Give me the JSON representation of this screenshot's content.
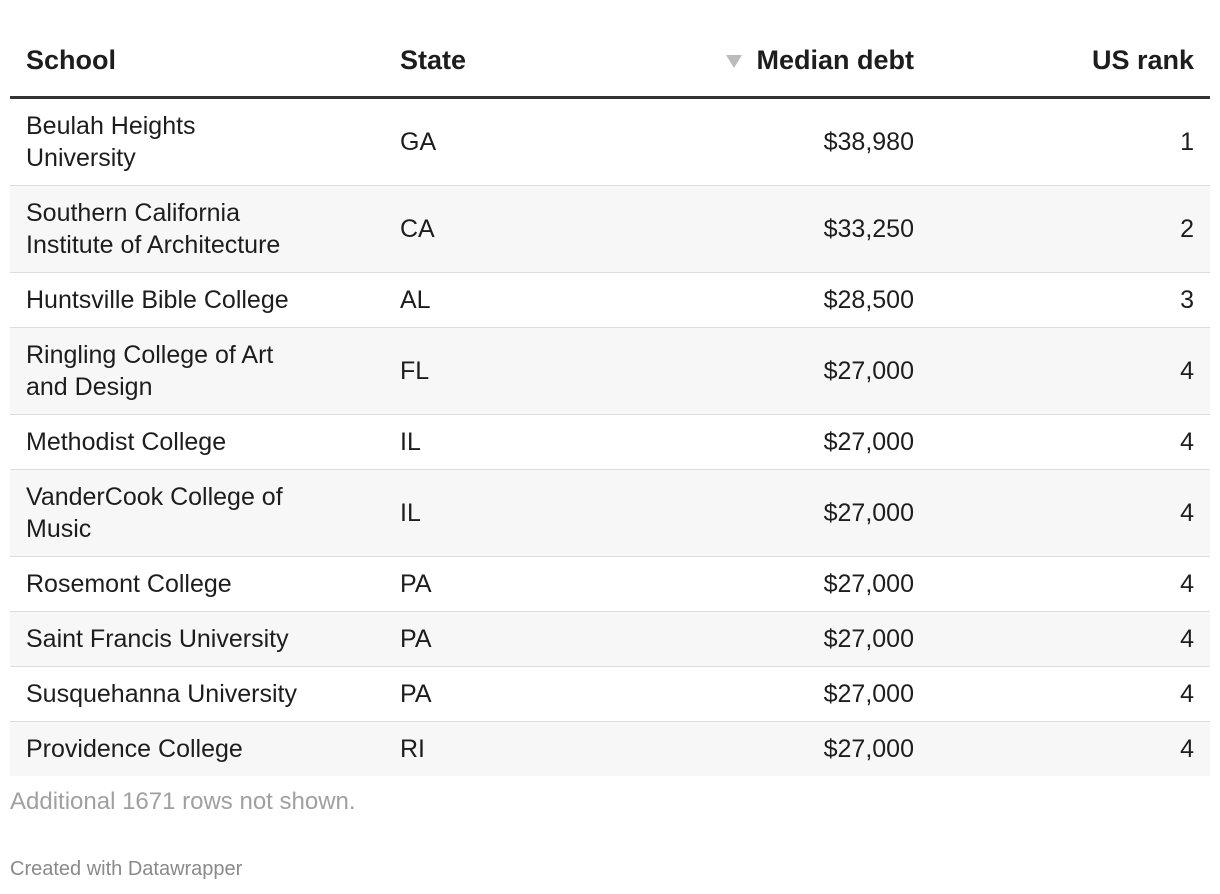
{
  "table": {
    "columns": [
      "School",
      "State",
      "Median debt",
      "US rank"
    ],
    "rows": [
      [
        "Beulah Heights University",
        "GA",
        "$38,980",
        1
      ],
      [
        "Southern California Institute of Architecture",
        "CA",
        "$33,250",
        2
      ],
      [
        "Huntsville Bible College",
        "AL",
        "$28,500",
        3
      ],
      [
        "Ringling College of Art and Design",
        "FL",
        "$27,000",
        4
      ],
      [
        "Methodist College",
        "IL",
        "$27,000",
        4
      ],
      [
        "VanderCook College of Music",
        "IL",
        "$27,000",
        4
      ],
      [
        "Rosemont College",
        "PA",
        "$27,000",
        4
      ],
      [
        "Saint Francis University",
        "PA",
        "$27,000",
        4
      ],
      [
        "Susquehanna University",
        "PA",
        "$27,000",
        4
      ],
      [
        "Providence College",
        "RI",
        "$27,000",
        4
      ]
    ]
  },
  "notes": "Additional 1671 rows not shown.",
  "credit": "Created with Datawrapper"
}
